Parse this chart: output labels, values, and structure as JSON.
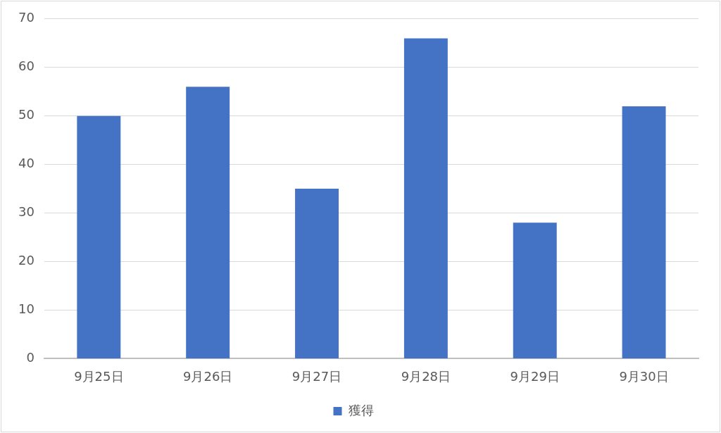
{
  "chart_data": {
    "type": "bar",
    "categories": [
      "9月25日",
      "9月26日",
      "9月27日",
      "9月28日",
      "9月29日",
      "9月30日"
    ],
    "series": [
      {
        "name": "獲得",
        "color": "#4472c4",
        "values": [
          50,
          56,
          35,
          66,
          28,
          52
        ]
      }
    ],
    "ylim": [
      0,
      70
    ],
    "yticks": [
      0,
      10,
      20,
      30,
      40,
      50,
      60,
      70
    ],
    "grid": "y",
    "legend": "bottom"
  }
}
